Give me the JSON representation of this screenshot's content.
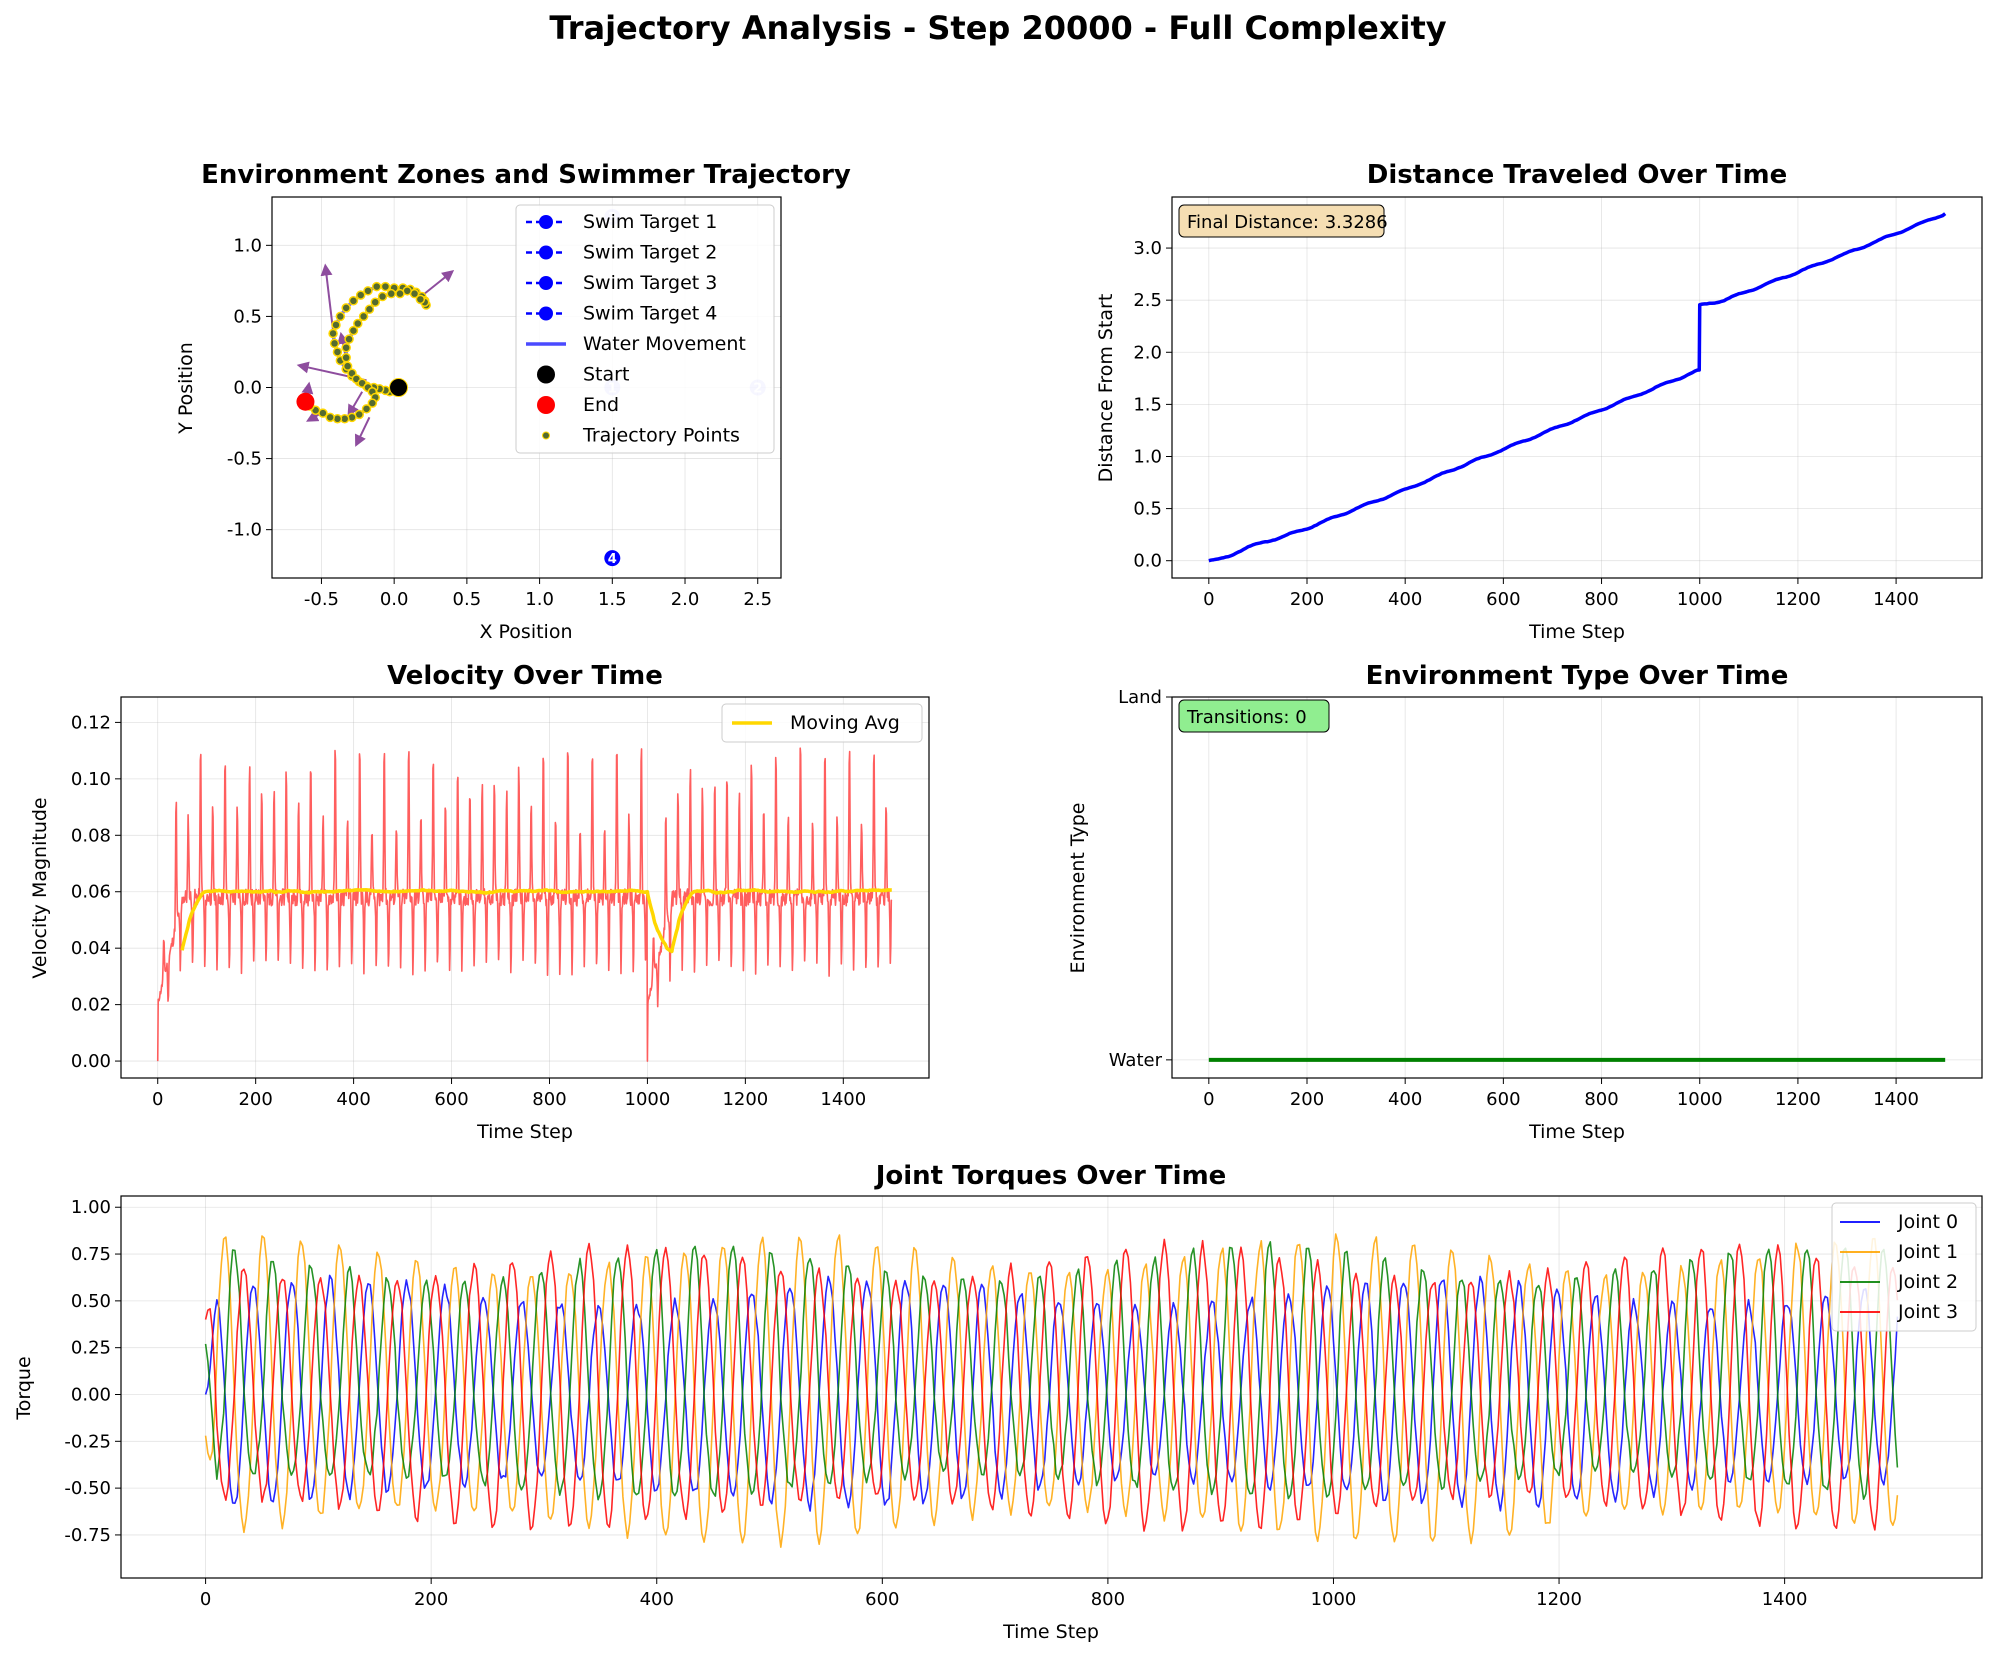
{
  "suptitle": "Trajectory Analysis - Step 20000 - Full Complexity",
  "colors": {
    "target": "#0000ff",
    "water_line": "#4a4aff",
    "traj_point": "#556b2f",
    "arrow": "#7b2e8e",
    "start": "#000000",
    "end": "#ff0000",
    "distance": "#0000ff",
    "velocity": "#ff4d4d",
    "moving_avg": "#ffd700",
    "env": "#008000",
    "joint0": "#0000ff",
    "joint1": "#ffa500",
    "joint2": "#008000",
    "joint3": "#ff0000",
    "final_box": "#f5deb3",
    "trans_box": "#90ee90"
  },
  "chart_data": [
    {
      "id": "zones",
      "type": "scatter",
      "title": "Environment Zones and Swimmer Trajectory",
      "xlabel": "X Position",
      "ylabel": "Y Position",
      "xlim": [
        -0.84,
        2.66
      ],
      "ylim": [
        -1.34,
        1.34
      ],
      "xticks": [
        -0.5,
        0.0,
        0.5,
        1.0,
        1.5,
        2.0,
        2.5
      ],
      "yticks": [
        -1.0,
        -0.5,
        0.0,
        0.5,
        1.0
      ],
      "grid": true,
      "legend_position": "upper-right",
      "legend": [
        "Swim Target 1",
        "Swim Target 2",
        "Swim Target 3",
        "Swim Target 4",
        "Water Movement",
        "Start",
        "End",
        "Trajectory Points"
      ],
      "targets": [
        {
          "label": "1",
          "x": 1.5,
          "y": 0.0
        },
        {
          "label": "2",
          "x": 2.5,
          "y": 0.0
        },
        {
          "label": "3",
          "x": 1.5,
          "y": 1.2
        },
        {
          "label": "4",
          "x": 1.5,
          "y": -1.2
        }
      ],
      "start": [
        0.03,
        0.0
      ],
      "end": [
        -0.61,
        -0.1
      ],
      "trajectory": [
        [
          0.03,
          0.0
        ],
        [
          0.0,
          -0.02
        ],
        [
          -0.03,
          -0.03
        ],
        [
          -0.06,
          -0.02
        ],
        [
          -0.1,
          -0.01
        ],
        [
          -0.14,
          0.0
        ],
        [
          -0.19,
          0.01
        ],
        [
          -0.24,
          0.04
        ],
        [
          -0.29,
          0.08
        ],
        [
          -0.33,
          0.13
        ],
        [
          -0.37,
          0.19
        ],
        [
          -0.39,
          0.25
        ],
        [
          -0.41,
          0.31
        ],
        [
          -0.42,
          0.38
        ],
        [
          -0.4,
          0.44
        ],
        [
          -0.37,
          0.5
        ],
        [
          -0.33,
          0.56
        ],
        [
          -0.28,
          0.61
        ],
        [
          -0.23,
          0.65
        ],
        [
          -0.18,
          0.68
        ],
        [
          -0.12,
          0.71
        ],
        [
          -0.06,
          0.71
        ],
        [
          0.0,
          0.7
        ],
        [
          0.06,
          0.7
        ],
        [
          0.11,
          0.69
        ],
        [
          0.15,
          0.67
        ],
        [
          0.19,
          0.64
        ],
        [
          0.21,
          0.61
        ],
        [
          0.22,
          0.58
        ],
        [
          0.21,
          0.6
        ],
        [
          0.18,
          0.62
        ],
        [
          0.14,
          0.66
        ],
        [
          0.09,
          0.68
        ],
        [
          0.04,
          0.66
        ],
        [
          -0.02,
          0.66
        ],
        [
          -0.08,
          0.64
        ],
        [
          -0.13,
          0.6
        ],
        [
          -0.17,
          0.55
        ],
        [
          -0.21,
          0.5
        ],
        [
          -0.25,
          0.45
        ],
        [
          -0.28,
          0.4
        ],
        [
          -0.31,
          0.34
        ],
        [
          -0.33,
          0.28
        ],
        [
          -0.33,
          0.21
        ],
        [
          -0.32,
          0.15
        ],
        [
          -0.29,
          0.1
        ],
        [
          -0.26,
          0.06
        ],
        [
          -0.22,
          0.03
        ],
        [
          -0.18,
          0.0
        ],
        [
          -0.15,
          -0.03
        ],
        [
          -0.13,
          -0.07
        ],
        [
          -0.15,
          -0.11
        ],
        [
          -0.19,
          -0.15
        ],
        [
          -0.24,
          -0.19
        ],
        [
          -0.29,
          -0.21
        ],
        [
          -0.34,
          -0.22
        ],
        [
          -0.39,
          -0.22
        ],
        [
          -0.44,
          -0.21
        ],
        [
          -0.49,
          -0.18
        ],
        [
          -0.54,
          -0.16
        ],
        [
          -0.58,
          -0.13
        ],
        [
          -0.61,
          -0.1
        ]
      ],
      "arrows": [
        {
          "x": -0.42,
          "y": 0.4,
          "dx": -0.05,
          "dy": 0.43
        },
        {
          "x": 0.16,
          "y": 0.62,
          "dx": 0.22,
          "dy": 0.18
        },
        {
          "x": -0.19,
          "y": 0.05,
          "dx": -0.44,
          "dy": 0.1
        },
        {
          "x": -0.33,
          "y": 0.2,
          "dx": -0.03,
          "dy": 0.15
        },
        {
          "x": -0.22,
          "y": -0.03,
          "dx": -0.08,
          "dy": -0.14
        },
        {
          "x": -0.17,
          "y": -0.21,
          "dx": -0.08,
          "dy": -0.17
        },
        {
          "x": -0.61,
          "y": -0.12,
          "dx": 0.02,
          "dy": 0.12
        },
        {
          "x": -0.5,
          "y": -0.18,
          "dx": -0.07,
          "dy": -0.04
        }
      ]
    },
    {
      "id": "distance",
      "type": "line",
      "title": "Distance Traveled Over Time",
      "xlabel": "Time Step",
      "ylabel": "Distance From Start",
      "xlim": [
        -75,
        1575
      ],
      "ylim": [
        -0.166,
        3.49
      ],
      "xticks": [
        0,
        200,
        400,
        600,
        800,
        1000,
        1200,
        1400
      ],
      "yticks": [
        0.0,
        0.5,
        1.0,
        1.5,
        2.0,
        2.5,
        3.0
      ],
      "grid": true,
      "annotation": "Final Distance: 3.3286",
      "x": [
        0,
        20,
        40,
        60,
        80,
        100,
        150,
        200,
        300,
        400,
        500,
        600,
        700,
        800,
        900,
        999,
        1000,
        1050,
        1100,
        1200,
        1300,
        1400,
        1500
      ],
      "y": [
        0.0,
        0.01,
        0.04,
        0.09,
        0.13,
        0.16,
        0.23,
        0.31,
        0.5,
        0.68,
        0.88,
        1.07,
        1.26,
        1.45,
        1.64,
        1.83,
        2.45,
        2.5,
        2.59,
        2.77,
        2.95,
        3.14,
        3.33
      ]
    },
    {
      "id": "velocity",
      "type": "line",
      "title": "Velocity Over Time",
      "xlabel": "Time Step",
      "ylabel": "Velocity Magnitude",
      "xlim": [
        -75,
        1575
      ],
      "ylim": [
        -0.006,
        0.129
      ],
      "xticks": [
        0,
        200,
        400,
        600,
        800,
        1000,
        1200,
        1400
      ],
      "yticks": [
        0.0,
        0.02,
        0.04,
        0.06,
        0.08,
        0.1,
        0.12
      ],
      "grid": true,
      "legend_position": "upper-right",
      "series": [
        {
          "name": "",
          "kind": "raw",
          "period": 25,
          "length": 1500,
          "baseline": 0.04,
          "peak_range": [
            0.085,
            0.115
          ],
          "reset_steps": [
            0,
            1000
          ]
        },
        {
          "name": "Moving Avg",
          "kind": "smoothed",
          "window": 50,
          "start": 50,
          "end": 1499,
          "range": [
            0.03,
            0.076
          ]
        }
      ]
    },
    {
      "id": "environment",
      "type": "line",
      "title": "Environment Type Over Time",
      "xlabel": "Time Step",
      "ylabel": "Environment Type",
      "xlim": [
        -75,
        1575
      ],
      "ylim": [
        -0.05,
        1.0
      ],
      "xticks": [
        0,
        200,
        400,
        600,
        800,
        1000,
        1200,
        1400
      ],
      "ytick_labels": [
        "Water",
        "Land"
      ],
      "grid": true,
      "annotation": "Transitions: 0",
      "x": [
        0,
        1500
      ],
      "y": [
        0,
        0
      ]
    },
    {
      "id": "torques",
      "type": "line",
      "title": "Joint Torques Over Time",
      "xlabel": "Time Step",
      "ylabel": "Torque",
      "xlim": [
        -75,
        1575
      ],
      "ylim": [
        -0.98,
        1.06
      ],
      "xticks": [
        0,
        200,
        400,
        600,
        800,
        1000,
        1200,
        1400
      ],
      "yticks": [
        -0.75,
        -0.5,
        -0.25,
        0.0,
        0.25,
        0.5,
        0.75,
        1.0
      ],
      "grid": true,
      "legend_position": "upper-right",
      "period_steps": 34,
      "series": [
        {
          "name": "Joint 0",
          "amp_max": 0.62,
          "amp_min": -0.6,
          "phase": 0.0,
          "start": 0.0
        },
        {
          "name": "Joint 1",
          "amp_max": 0.85,
          "amp_min": -0.8,
          "phase": 1.5708,
          "start": -0.22
        },
        {
          "name": "Joint 2",
          "amp_max": 0.8,
          "amp_min": -0.55,
          "phase": 3.1416,
          "start": 0.27
        },
        {
          "name": "Joint 3",
          "amp_max": 0.8,
          "amp_min": -0.72,
          "phase": 4.7124,
          "start": 0.4
        }
      ]
    }
  ]
}
